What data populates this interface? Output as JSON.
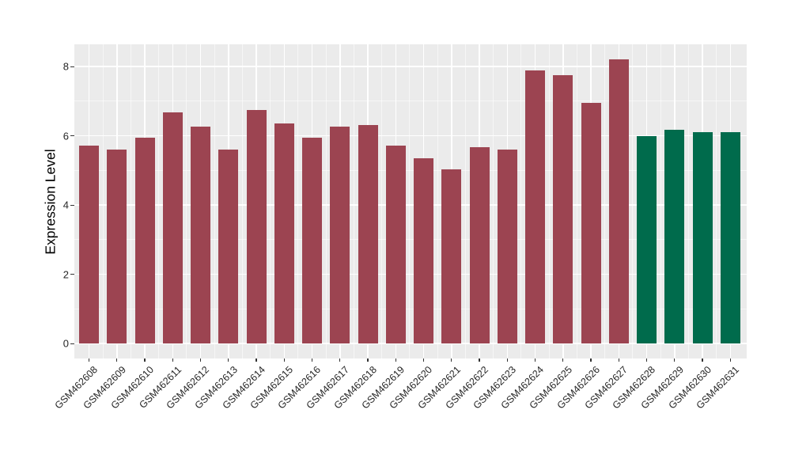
{
  "chart_data": {
    "type": "bar",
    "title": "",
    "xlabel": "",
    "ylabel": "Expression Level",
    "categories": [
      "GSM462608",
      "GSM462609",
      "GSM462610",
      "GSM462611",
      "GSM462612",
      "GSM462613",
      "GSM462614",
      "GSM462615",
      "GSM462616",
      "GSM462617",
      "GSM462618",
      "GSM462619",
      "GSM462620",
      "GSM462621",
      "GSM462622",
      "GSM462623",
      "GSM462624",
      "GSM462625",
      "GSM462626",
      "GSM462627",
      "GSM462628",
      "GSM462629",
      "GSM462630",
      "GSM462631"
    ],
    "values": [
      5.72,
      5.6,
      5.94,
      6.68,
      6.27,
      5.6,
      6.74,
      6.36,
      5.95,
      6.26,
      6.31,
      5.72,
      5.35,
      5.02,
      5.66,
      5.6,
      7.89,
      7.76,
      6.95,
      8.21,
      6.0,
      6.17,
      6.1,
      6.1
    ],
    "bar_colors": [
      "#9C4451",
      "#9C4451",
      "#9C4451",
      "#9C4451",
      "#9C4451",
      "#9C4451",
      "#9C4451",
      "#9C4451",
      "#9C4451",
      "#9C4451",
      "#9C4451",
      "#9C4451",
      "#9C4451",
      "#9C4451",
      "#9C4451",
      "#9C4451",
      "#9C4451",
      "#9C4451",
      "#9C4451",
      "#9C4451",
      "#006B4C",
      "#006B4C",
      "#006B4C",
      "#006B4C"
    ],
    "ylim": [
      0,
      8.64
    ],
    "yticks": [
      0,
      2,
      4,
      6,
      8
    ],
    "ytick_labels": [
      "0",
      "2",
      "4",
      "6",
      "8"
    ],
    "minor_yticks": [
      1,
      3,
      5,
      7
    ],
    "grid": "on",
    "legend_position": "none",
    "colors": {
      "bar_red": "#9C4451",
      "bar_green": "#006B4C",
      "panel_background": "#EBEBEB",
      "gridline": "#FFFFFF",
      "tick": "#333333",
      "axis_text": "#262626"
    }
  }
}
